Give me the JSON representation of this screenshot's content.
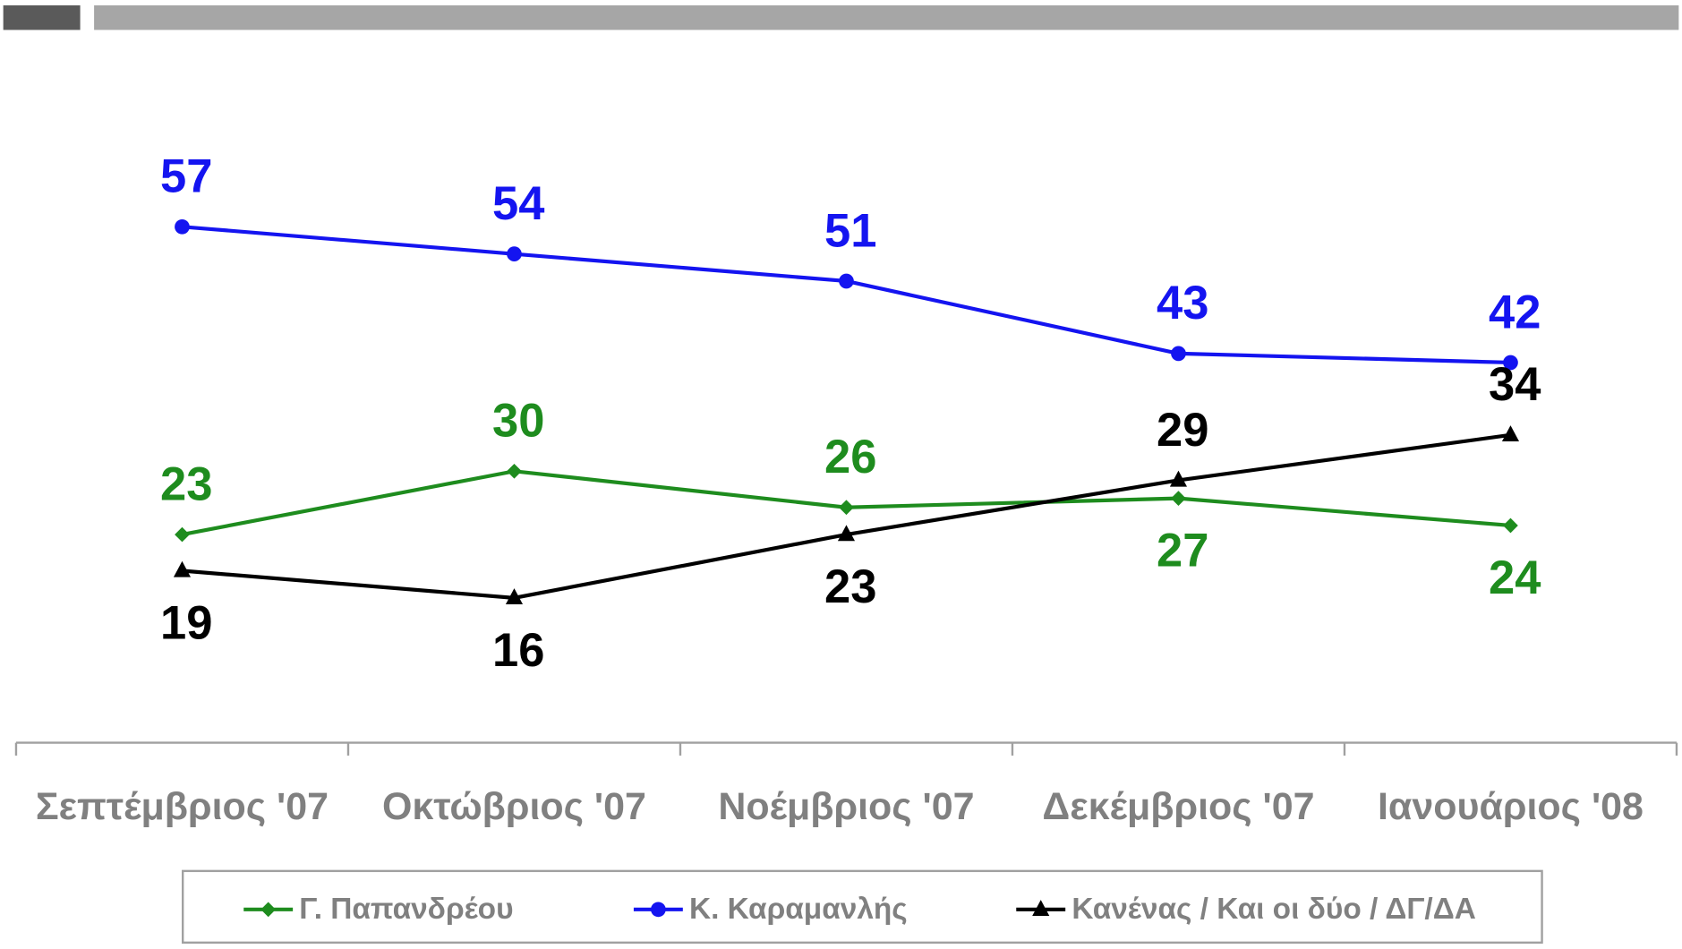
{
  "chart_data": {
    "type": "line",
    "categories": [
      "Σεπτέμβριος '07",
      "Οκτώβριος '07",
      "Νοέμβριος '07",
      "Δεκέμβριος '07",
      "Ιανουάριος '08"
    ],
    "series": [
      {
        "name": "Γ. Παπανδρέου",
        "color": "#1e8c1e",
        "marker": "diamond",
        "values": [
          23,
          30,
          26,
          27,
          24
        ]
      },
      {
        "name": "Κ. Καραμανλής",
        "color": "#1414f0",
        "marker": "circle",
        "values": [
          57,
          54,
          51,
          43,
          42
        ]
      },
      {
        "name": "Κανένας / Και οι δύο / ΔΓ/ΔΑ",
        "color": "#000000",
        "marker": "triangle",
        "values": [
          19,
          16,
          23,
          29,
          34
        ]
      }
    ],
    "ylim": [
      0,
      80
    ],
    "legend": "bottom"
  }
}
